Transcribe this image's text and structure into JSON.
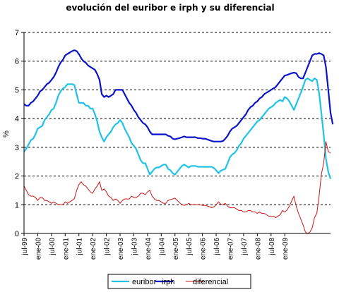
{
  "chart_data": {
    "type": "line",
    "title": "evolución del euribor e irph y su diferencial",
    "ylabel": "%",
    "ylim": [
      0,
      7
    ],
    "yticks": [
      "0",
      "1",
      "2",
      "3",
      "4",
      "5",
      "6",
      "7"
    ],
    "grid": "horizontal dashed",
    "legend_position": "bottom",
    "x_tick_labels": [
      "jul-99",
      "ene-00",
      "jul-00",
      "ene-01",
      "jul-01",
      "ene-02",
      "jul-02",
      "ene-03",
      "jul-03",
      "ene-04",
      "jul-04",
      "ene-05",
      "jul-05",
      "ene-06",
      "jul-06",
      "ene-07",
      "jul-07",
      "ene-08",
      "jul-08",
      "ene-09"
    ],
    "x_start": "jul-99",
    "x_end": "abr-09",
    "series": [
      {
        "name": "euribor",
        "color": "#1fc3e8",
        "values": [
          2.85,
          2.95,
          3.1,
          3.25,
          3.3,
          3.45,
          3.65,
          3.7,
          3.75,
          3.95,
          4.05,
          4.15,
          4.3,
          4.35,
          4.55,
          4.8,
          4.95,
          5.05,
          5.1,
          5.2,
          5.2,
          5.2,
          5.17,
          4.85,
          4.55,
          4.55,
          4.55,
          4.45,
          4.45,
          4.35,
          4.35,
          4.15,
          3.9,
          3.55,
          3.35,
          3.2,
          3.35,
          3.45,
          3.55,
          3.7,
          3.8,
          3.85,
          3.95,
          3.85,
          3.65,
          3.5,
          3.35,
          3.15,
          3.05,
          2.95,
          2.75,
          2.55,
          2.45,
          2.45,
          2.25,
          2.05,
          2.15,
          2.25,
          2.3,
          2.3,
          2.35,
          2.4,
          2.4,
          2.25,
          2.2,
          2.1,
          2.05,
          2.15,
          2.25,
          2.35,
          2.4,
          2.35,
          2.3,
          2.35,
          2.35,
          2.35,
          2.32,
          2.32,
          2.32,
          2.32,
          2.32,
          2.32,
          2.32,
          2.28,
          2.2,
          2.1,
          2.18,
          2.22,
          2.25,
          2.45,
          2.65,
          2.75,
          2.8,
          2.9,
          3.05,
          3.15,
          3.3,
          3.4,
          3.5,
          3.6,
          3.7,
          3.8,
          3.9,
          3.95,
          4.05,
          4.15,
          4.25,
          4.35,
          4.4,
          4.45,
          4.55,
          4.6,
          4.65,
          4.6,
          4.75,
          4.7,
          4.6,
          4.45,
          4.3,
          4.5,
          4.7,
          4.9,
          5.1,
          5.35,
          5.4,
          5.35,
          5.3,
          5.4,
          5.35,
          4.9,
          4.2,
          3.45,
          2.6,
          2.15,
          1.9
        ]
      },
      {
        "name": "irph",
        "color": "#0a14c8",
        "values": [
          4.5,
          4.45,
          4.45,
          4.55,
          4.6,
          4.7,
          4.8,
          4.95,
          5.0,
          5.1,
          5.2,
          5.25,
          5.35,
          5.45,
          5.6,
          5.8,
          5.95,
          6.05,
          6.2,
          6.25,
          6.3,
          6.35,
          6.38,
          6.35,
          6.25,
          6.1,
          6.0,
          5.95,
          5.85,
          5.8,
          5.75,
          5.7,
          5.55,
          5.35,
          4.85,
          4.75,
          4.8,
          4.75,
          4.8,
          4.85,
          5.0,
          5.0,
          5.0,
          5.0,
          4.85,
          4.7,
          4.55,
          4.45,
          4.3,
          4.2,
          4.05,
          3.95,
          3.85,
          3.8,
          3.7,
          3.55,
          3.45,
          3.45,
          3.45,
          3.45,
          3.45,
          3.45,
          3.45,
          3.4,
          3.38,
          3.3,
          3.28,
          3.3,
          3.32,
          3.35,
          3.38,
          3.35,
          3.35,
          3.35,
          3.35,
          3.35,
          3.32,
          3.32,
          3.3,
          3.3,
          3.28,
          3.25,
          3.22,
          3.2,
          3.2,
          3.2,
          3.2,
          3.22,
          3.3,
          3.4,
          3.55,
          3.65,
          3.7,
          3.75,
          3.85,
          3.95,
          4.05,
          4.15,
          4.3,
          4.4,
          4.45,
          4.55,
          4.6,
          4.7,
          4.75,
          4.85,
          4.9,
          4.95,
          5.0,
          5.05,
          5.1,
          5.2,
          5.3,
          5.4,
          5.5,
          5.52,
          5.55,
          5.58,
          5.6,
          5.58,
          5.45,
          5.4,
          5.4,
          5.6,
          5.8,
          6.0,
          6.2,
          6.25,
          6.25,
          6.28,
          6.25,
          6.2,
          5.8,
          5.0,
          4.2,
          3.8
        ]
      },
      {
        "name": "diferencial",
        "color": "#cc1616",
        "values": [
          1.65,
          1.5,
          1.35,
          1.3,
          1.3,
          1.25,
          1.15,
          1.25,
          1.25,
          1.15,
          1.15,
          1.1,
          1.05,
          1.1,
          1.05,
          1.0,
          1.0,
          1.0,
          1.1,
          1.05,
          1.1,
          1.15,
          1.21,
          1.5,
          1.7,
          1.8,
          1.7,
          1.65,
          1.55,
          1.45,
          1.4,
          1.55,
          1.65,
          1.8,
          1.5,
          1.55,
          1.45,
          1.3,
          1.25,
          1.15,
          1.2,
          1.15,
          1.05,
          1.15,
          1.2,
          1.2,
          1.2,
          1.3,
          1.25,
          1.25,
          1.3,
          1.4,
          1.4,
          1.35,
          1.45,
          1.5,
          1.3,
          1.2,
          1.15,
          1.15,
          1.1,
          1.05,
          1.05,
          1.15,
          1.18,
          1.2,
          1.23,
          1.15,
          1.07,
          1.0,
          0.98,
          1.0,
          1.05,
          1.0,
          1.0,
          1.0,
          1.0,
          1.0,
          0.98,
          0.98,
          0.96,
          0.93,
          0.9,
          0.92,
          1.0,
          1.1,
          1.02,
          1.0,
          1.05,
          0.95,
          0.9,
          0.9,
          0.9,
          0.85,
          0.8,
          0.8,
          0.75,
          0.75,
          0.8,
          0.8,
          0.75,
          0.75,
          0.7,
          0.75,
          0.7,
          0.7,
          0.65,
          0.6,
          0.6,
          0.6,
          0.55,
          0.6,
          0.65,
          0.8,
          0.75,
          0.82,
          0.95,
          1.13,
          1.3,
          0.95,
          0.7,
          0.5,
          0.3,
          0.05,
          0.0,
          0.05,
          0.2,
          0.55,
          0.7,
          1.3,
          2.05,
          2.45,
          3.2,
          2.85,
          2.8
        ]
      }
    ]
  }
}
